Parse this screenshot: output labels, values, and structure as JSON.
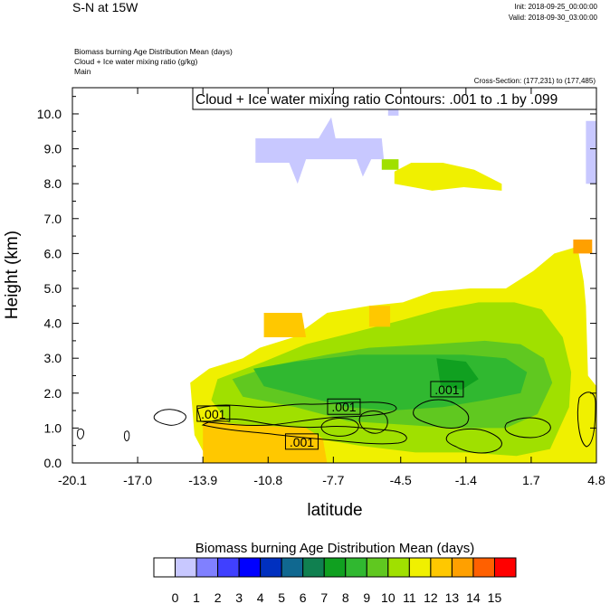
{
  "header": {
    "title": "S-N at 15W",
    "init": "Init: 2018-09-25_00:00:00",
    "valid": "Valid: 2018-09-30_03:00:00",
    "fields": [
      "Biomass burning Age Distribution Mean   (days)",
      "Cloud + Ice water mixing ratio   (g/kg)",
      "Main"
    ],
    "cross_section": "Cross-Section: (177,231) to (177,485)"
  },
  "colors": {
    "levels": [
      "#ffffff",
      "#c8c8ff",
      "#8080ff",
      "#4040ff",
      "#0000ff",
      "#0030c0",
      "#106890",
      "#108050",
      "#10a020",
      "#30b830",
      "#60c820",
      "#a0e000",
      "#f0f000",
      "#ffc800",
      "#ffa000",
      "#ff6000",
      "#ff0000"
    ],
    "contour": "#000000"
  },
  "chart_data": {
    "type": "heatmap",
    "title": "Cloud + Ice water mixing ratio Contours: .001 to .1 by .099",
    "xlabel": "latitude",
    "ylabel": "Height (km)",
    "xlim": [
      -20.1,
      4.8
    ],
    "ylim": [
      0.0,
      10.75
    ],
    "xticks": [
      "-20.1",
      "-17.0",
      "-13.9",
      "-10.8",
      "-7.7",
      "-4.5",
      "-1.4",
      "1.7",
      "4.8"
    ],
    "yticks": [
      "0.0",
      "1.0",
      "2.0",
      "3.0",
      "4.0",
      "5.0",
      "6.0",
      "7.0",
      "8.0",
      "9.0",
      "10.0"
    ],
    "colorbar_title": "Biomass burning Age Distribution Mean  (days)",
    "colorbar_labels": [
      "0",
      "1",
      "2",
      "3",
      "4",
      "5",
      "6",
      "7",
      "8",
      "9",
      "10",
      "11",
      "12",
      "13",
      "14",
      "15"
    ],
    "contour_labels": [
      {
        "text": ".001",
        "lat": -13.4,
        "z": 1.4
      },
      {
        "text": ".001",
        "lat": -7.2,
        "z": 1.6
      },
      {
        "text": ".001",
        "lat": -9.2,
        "z": 0.6
      },
      {
        "text": ".001",
        "lat": -2.3,
        "z": 2.1
      }
    ],
    "regions": [
      {
        "level": 12,
        "note": "yellow upper band at ~8.0-8.6 km",
        "pts": [
          [
            -4.8,
            8.35
          ],
          [
            -4.0,
            8.6
          ],
          [
            -2.5,
            8.6
          ],
          [
            -1.0,
            8.4
          ],
          [
            0.3,
            8.0
          ],
          [
            0.3,
            7.8
          ],
          [
            -1.5,
            7.9
          ],
          [
            -3.0,
            7.8
          ],
          [
            -4.8,
            8.0
          ]
        ]
      },
      {
        "level": 11,
        "note": "green-yellow upper patches",
        "pts": [
          [
            -5.4,
            8.7
          ],
          [
            -4.6,
            8.7
          ],
          [
            -4.6,
            8.4
          ],
          [
            -5.4,
            8.4
          ]
        ]
      },
      {
        "level": 1,
        "note": "light lavender upper cloud layer",
        "pts": [
          [
            -11.4,
            9.3
          ],
          [
            -8.4,
            9.3
          ],
          [
            -7.8,
            9.9
          ],
          [
            -7.6,
            9.3
          ],
          [
            -5.4,
            9.3
          ],
          [
            -5.3,
            8.7
          ],
          [
            -5.9,
            8.7
          ],
          [
            -6.3,
            8.2
          ],
          [
            -6.6,
            8.7
          ],
          [
            -9.0,
            8.7
          ],
          [
            -9.4,
            8.0
          ],
          [
            -9.8,
            8.6
          ],
          [
            -11.0,
            8.6
          ],
          [
            -11.4,
            8.6
          ]
        ]
      },
      {
        "level": 1,
        "note": "lavender near top right",
        "pts": [
          [
            4.3,
            9.8
          ],
          [
            4.8,
            9.8
          ],
          [
            4.8,
            8.0
          ],
          [
            4.3,
            8.0
          ]
        ]
      },
      {
        "level": 1,
        "note": "small lavender cell top",
        "pts": [
          [
            -5.1,
            10.3
          ],
          [
            -4.6,
            10.3
          ],
          [
            -4.6,
            9.95
          ],
          [
            -5.1,
            9.95
          ]
        ]
      },
      {
        "level": 12,
        "note": "yellow lower plume",
        "pts": [
          [
            -13.6,
            2.7
          ],
          [
            -12.0,
            3.0
          ],
          [
            -11.2,
            3.3
          ],
          [
            -9.6,
            3.6
          ],
          [
            -8.0,
            4.3
          ],
          [
            -6.0,
            4.5
          ],
          [
            -4.4,
            4.6
          ],
          [
            -3.0,
            4.9
          ],
          [
            -1.2,
            5.0
          ],
          [
            0.5,
            5.0
          ],
          [
            1.8,
            5.5
          ],
          [
            2.8,
            6.0
          ],
          [
            3.9,
            6.2
          ],
          [
            4.2,
            5.2
          ],
          [
            4.3,
            4.5
          ],
          [
            4.4,
            2.5
          ],
          [
            4.8,
            2.2
          ],
          [
            4.8,
            0.0
          ],
          [
            -13.6,
            0.0
          ],
          [
            -14.3,
            0.8
          ],
          [
            -14.5,
            2.3
          ]
        ]
      },
      {
        "level": 11,
        "note": "green-yellow layer",
        "pts": [
          [
            -13.2,
            2.4
          ],
          [
            -11.0,
            2.9
          ],
          [
            -9.0,
            3.4
          ],
          [
            -7.0,
            3.7
          ],
          [
            -4.4,
            4.1
          ],
          [
            -2.6,
            4.4
          ],
          [
            -0.8,
            4.6
          ],
          [
            0.9,
            4.6
          ],
          [
            2.2,
            4.4
          ],
          [
            3.2,
            3.6
          ],
          [
            3.6,
            2.6
          ],
          [
            3.5,
            1.6
          ],
          [
            2.6,
            0.4
          ],
          [
            1.0,
            0.2
          ],
          [
            -1.4,
            0.3
          ],
          [
            -3.8,
            0.3
          ],
          [
            -6.5,
            0.5
          ],
          [
            -9.5,
            0.8
          ],
          [
            -12.5,
            1.0
          ],
          [
            -13.5,
            1.8
          ]
        ]
      },
      {
        "level": 10,
        "note": "light green layer",
        "pts": [
          [
            -12.5,
            2.4
          ],
          [
            -10.5,
            2.8
          ],
          [
            -8.0,
            3.1
          ],
          [
            -6.0,
            3.3
          ],
          [
            -3.0,
            3.4
          ],
          [
            -0.5,
            3.5
          ],
          [
            1.2,
            3.4
          ],
          [
            2.3,
            3.0
          ],
          [
            2.7,
            2.3
          ],
          [
            2.0,
            1.4
          ],
          [
            0.5,
            1.0
          ],
          [
            -2.0,
            1.0
          ],
          [
            -4.5,
            1.1
          ],
          [
            -7.0,
            1.2
          ],
          [
            -9.5,
            1.6
          ],
          [
            -12.0,
            1.9
          ]
        ]
      },
      {
        "level": 9,
        "note": "green core",
        "pts": [
          [
            -11.5,
            2.7
          ],
          [
            -9.5,
            2.9
          ],
          [
            -6.5,
            3.1
          ],
          [
            -4.0,
            3.1
          ],
          [
            -1.5,
            3.1
          ],
          [
            0.5,
            3.0
          ],
          [
            1.5,
            2.6
          ],
          [
            1.2,
            2.0
          ],
          [
            -0.5,
            1.8
          ],
          [
            -2.5,
            1.6
          ],
          [
            -5.0,
            1.5
          ],
          [
            -7.0,
            1.6
          ],
          [
            -9.0,
            1.9
          ],
          [
            -11.0,
            2.2
          ]
        ]
      },
      {
        "level": 8,
        "note": "darker green cells",
        "pts": [
          [
            -2.8,
            3.0
          ],
          [
            -1.4,
            2.9
          ],
          [
            -0.8,
            2.4
          ],
          [
            -1.6,
            2.1
          ],
          [
            -2.6,
            2.2
          ]
        ]
      },
      {
        "level": 13,
        "note": "orange-gold lower left block",
        "pts": [
          [
            -13.9,
            1.2
          ],
          [
            -12.0,
            1.1
          ],
          [
            -9.0,
            1.0
          ],
          [
            -8.2,
            0.7
          ],
          [
            -8.0,
            0.0
          ],
          [
            -13.9,
            0.0
          ]
        ]
      },
      {
        "level": 13,
        "note": "orange cells mid-level",
        "pts": [
          [
            -11.0,
            4.3
          ],
          [
            -9.2,
            4.3
          ],
          [
            -9.0,
            3.6
          ],
          [
            -11.0,
            3.6
          ]
        ]
      },
      {
        "level": 13,
        "note": "orange cell mid-level right",
        "pts": [
          [
            -6.0,
            4.5
          ],
          [
            -5.0,
            4.5
          ],
          [
            -5.0,
            3.9
          ],
          [
            -6.0,
            3.9
          ]
        ]
      },
      {
        "level": 14,
        "note": "orange upper right",
        "pts": [
          [
            3.7,
            6.4
          ],
          [
            4.6,
            6.4
          ],
          [
            4.6,
            6.0
          ],
          [
            3.7,
            6.0
          ]
        ]
      }
    ]
  }
}
